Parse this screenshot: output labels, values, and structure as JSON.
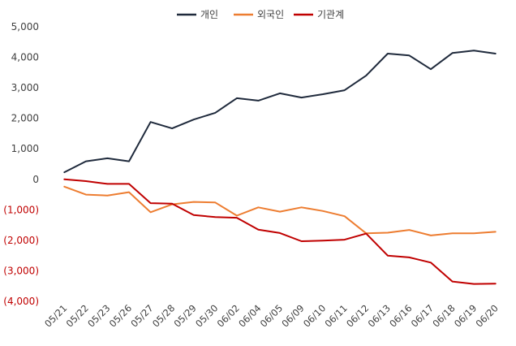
{
  "chart_data": {
    "type": "line",
    "categories": [
      "05/21",
      "05/22",
      "05/23",
      "05/26",
      "05/27",
      "05/28",
      "05/29",
      "05/30",
      "06/02",
      "06/04",
      "06/05",
      "06/09",
      "06/10",
      "06/11",
      "06/12",
      "06/13",
      "06/16",
      "06/17",
      "06/18",
      "06/19",
      "06/20"
    ],
    "series": [
      {
        "name": "개인",
        "color": "#1f2a3c",
        "values": [
          230,
          590,
          690,
          590,
          1880,
          1670,
          1960,
          2180,
          2660,
          2580,
          2820,
          2680,
          2790,
          2920,
          3400,
          4120,
          4060,
          3610,
          4140,
          4220,
          4120
        ]
      },
      {
        "name": "외국인",
        "color": "#ed7d31",
        "values": [
          -240,
          -500,
          -530,
          -420,
          -1080,
          -820,
          -740,
          -760,
          -1190,
          -920,
          -1060,
          -920,
          -1040,
          -1210,
          -1770,
          -1750,
          -1660,
          -1840,
          -1770,
          -1770,
          -1720
        ]
      },
      {
        "name": "기관계",
        "color": "#c00000",
        "values": [
          0,
          -60,
          -150,
          -150,
          -780,
          -800,
          -1170,
          -1240,
          -1260,
          -1650,
          -1760,
          -2030,
          -2010,
          -1980,
          -1780,
          -2500,
          -2560,
          -2730,
          -3350,
          -3430,
          -3420
        ]
      }
    ],
    "y_ticks": [
      "5,000",
      "4,000",
      "3,000",
      "2,000",
      "1,000",
      "0",
      "(1,000)",
      "(2,000)",
      "(3,000)",
      "(4,000)"
    ],
    "ylim": [
      -4000,
      5000
    ],
    "grid": false,
    "legend": "top-center"
  }
}
